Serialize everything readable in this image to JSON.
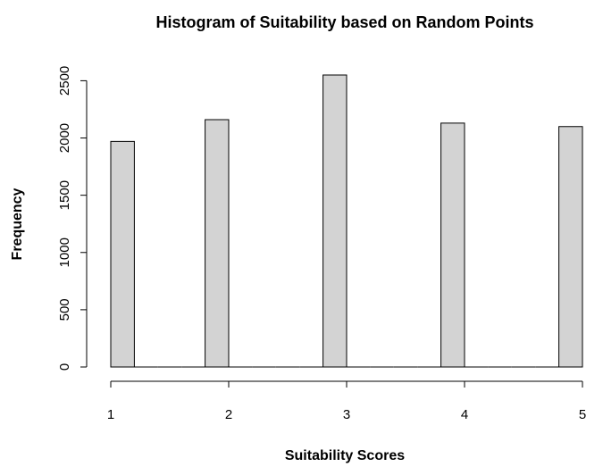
{
  "chart_data": {
    "type": "histogram",
    "title": "Histogram of Suitability based on Random Points",
    "x_label": "Suitability Scores",
    "y_label": "Frequency",
    "bins": [
      1,
      1.2,
      1.4,
      1.6,
      1.8,
      2,
      2.2,
      2.4,
      2.6,
      2.8,
      3,
      3.2,
      3.4,
      3.6,
      3.8,
      4,
      4.2,
      4.4,
      4.6,
      4.8,
      5
    ],
    "counts": [
      1970,
      0,
      0,
      0,
      2160,
      0,
      0,
      0,
      0,
      2550,
      0,
      0,
      0,
      0,
      2130,
      0,
      0,
      0,
      0,
      2100
    ],
    "color": "#d3d3d3",
    "xlim": [
      1,
      5
    ],
    "xticks": [
      1,
      2,
      3,
      4,
      5
    ],
    "ylim": [
      0,
      2550
    ],
    "yticks": [
      0,
      500,
      1000,
      1500,
      2000,
      2500
    ]
  }
}
